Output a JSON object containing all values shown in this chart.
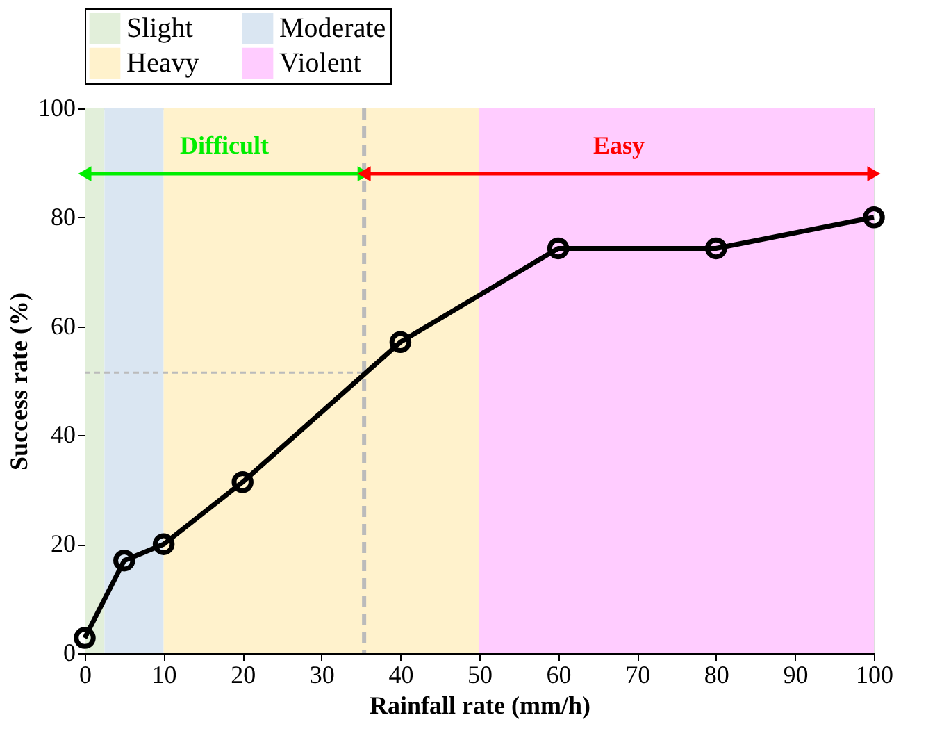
{
  "chart_data": {
    "type": "line",
    "xlabel": "Rainfall rate (mm/h)",
    "ylabel": "Success rate (%)",
    "x": [
      0,
      5,
      10,
      20,
      40,
      60,
      80,
      100
    ],
    "series": [
      {
        "color": "#000000",
        "values": [
          2.8,
          17,
          20,
          31.4,
          57.1,
          74.3,
          74.3,
          80
        ]
      }
    ],
    "xlim": [
      0,
      100
    ],
    "xticks": [
      0,
      10,
      20,
      30,
      40,
      50,
      60,
      70,
      80,
      90,
      100
    ],
    "ylim": [
      0,
      100
    ],
    "yticks": [
      0,
      20,
      40,
      60,
      80,
      100
    ],
    "bands": [
      {
        "axis": "x",
        "from": 0,
        "to": 2.5,
        "label": "Slight",
        "color": "#e2efda"
      },
      {
        "axis": "x",
        "from": 2.5,
        "to": 10,
        "label": "Moderate",
        "color": "#dae6f2"
      },
      {
        "axis": "x",
        "from": 10,
        "to": 50,
        "label": "Heavy",
        "color": "#fff2cc"
      },
      {
        "axis": "x",
        "from": 50,
        "to": 100,
        "label": "Violent",
        "color": "#ffccff"
      }
    ],
    "ref_lines": [
      {
        "axis": "x",
        "value": 35.4,
        "color": "#bbbbbb",
        "line_style": "dashed"
      },
      {
        "axis": "y",
        "value": 51.5,
        "color": "#bbbbbb",
        "line_style": "dashed"
      }
    ],
    "annotations": [
      "Difficult",
      "Easy"
    ],
    "marker": "circle",
    "line_style": "solid",
    "legend": "top",
    "grid": false
  }
}
